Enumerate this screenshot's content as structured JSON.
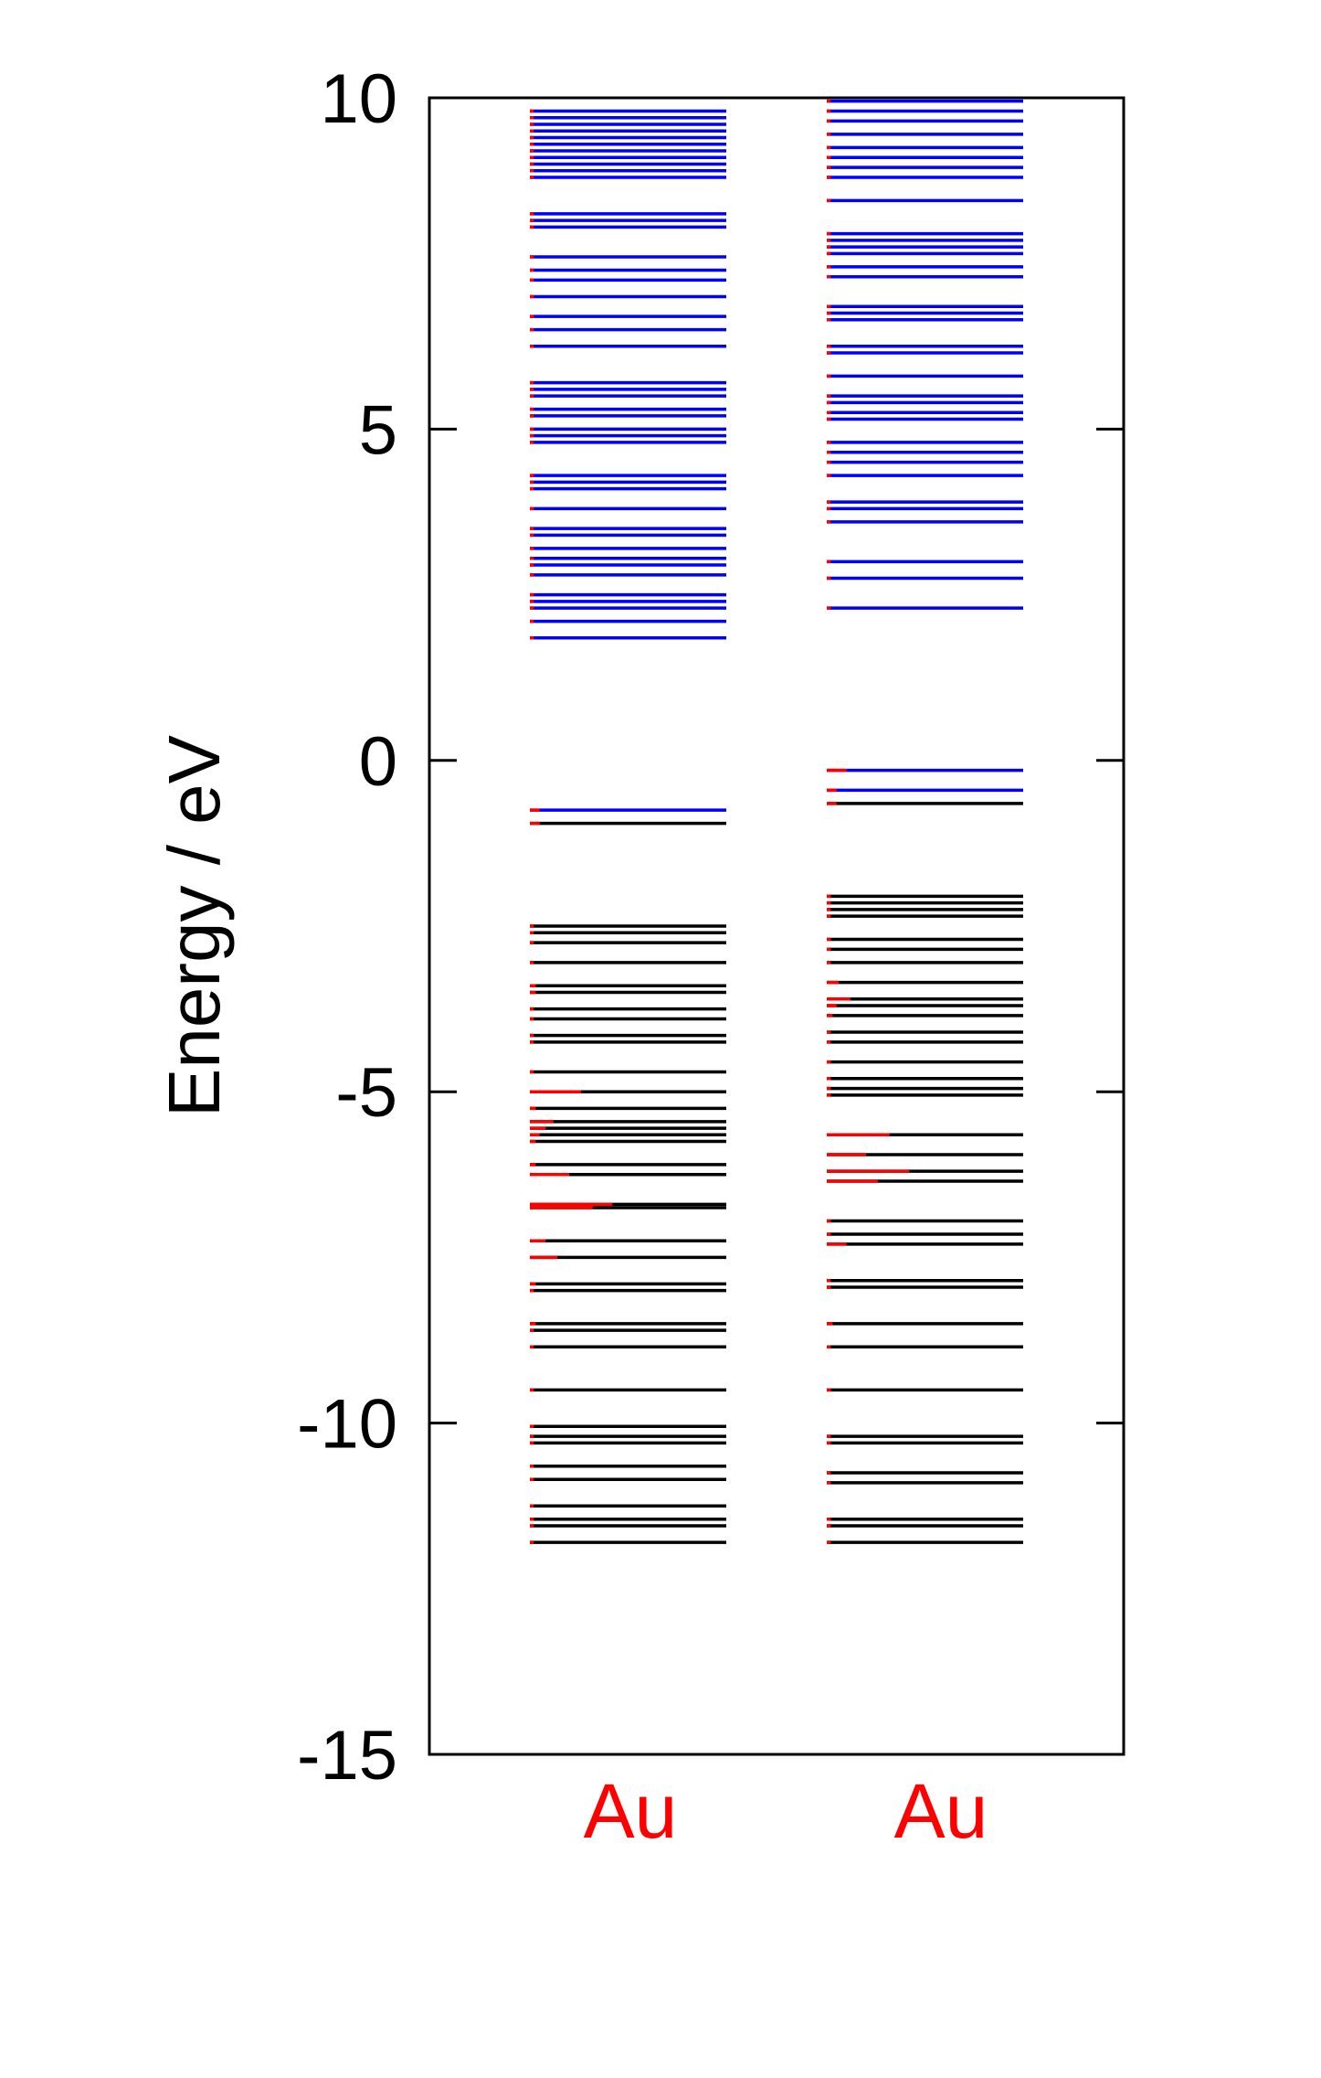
{
  "chart_data": {
    "type": "energy-level diagram",
    "ylabel": "Energy / eV",
    "ylim": [
      -15,
      10
    ],
    "yticks": [
      "10",
      "5",
      "0",
      "-5",
      "-10",
      "-15"
    ],
    "ytick_values": [
      10,
      5,
      0,
      -5,
      -10,
      -15
    ],
    "colors": {
      "unoccupied": "#0000ff",
      "occupied": "#000000",
      "au_fraction": "#ff0000",
      "column_label": "#ff0000",
      "axes": "#000000"
    },
    "columns": [
      {
        "label": "Au",
        "levels": [
          {
            "e": 9.8,
            "occ": false,
            "au": 0.02
          },
          {
            "e": 9.7,
            "occ": false,
            "au": 0.02
          },
          {
            "e": 9.6,
            "occ": false,
            "au": 0.02
          },
          {
            "e": 9.5,
            "occ": false,
            "au": 0.02
          },
          {
            "e": 9.4,
            "occ": false,
            "au": 0.02
          },
          {
            "e": 9.3,
            "occ": false,
            "au": 0.02
          },
          {
            "e": 9.2,
            "occ": false,
            "au": 0.02
          },
          {
            "e": 9.1,
            "occ": false,
            "au": 0.02
          },
          {
            "e": 9.0,
            "occ": false,
            "au": 0.02
          },
          {
            "e": 8.9,
            "occ": false,
            "au": 0.02
          },
          {
            "e": 8.8,
            "occ": false,
            "au": 0.02
          },
          {
            "e": 8.25,
            "occ": false,
            "au": 0.02
          },
          {
            "e": 8.15,
            "occ": false,
            "au": 0.02
          },
          {
            "e": 8.05,
            "occ": false,
            "au": 0.02
          },
          {
            "e": 7.6,
            "occ": false,
            "au": 0.02
          },
          {
            "e": 7.4,
            "occ": false,
            "au": 0.02
          },
          {
            "e": 7.25,
            "occ": false,
            "au": 0.02
          },
          {
            "e": 7.0,
            "occ": false,
            "au": 0.02
          },
          {
            "e": 6.7,
            "occ": false,
            "au": 0.02
          },
          {
            "e": 6.5,
            "occ": false,
            "au": 0.02
          },
          {
            "e": 6.25,
            "occ": false,
            "au": 0.02
          },
          {
            "e": 5.7,
            "occ": false,
            "au": 0.02
          },
          {
            "e": 5.6,
            "occ": false,
            "au": 0.02
          },
          {
            "e": 5.5,
            "occ": false,
            "au": 0.02
          },
          {
            "e": 5.3,
            "occ": false,
            "au": 0.02
          },
          {
            "e": 5.2,
            "occ": false,
            "au": 0.02
          },
          {
            "e": 5.0,
            "occ": false,
            "au": 0.02
          },
          {
            "e": 4.9,
            "occ": false,
            "au": 0.02
          },
          {
            "e": 4.8,
            "occ": false,
            "au": 0.02
          },
          {
            "e": 4.3,
            "occ": false,
            "au": 0.02
          },
          {
            "e": 4.2,
            "occ": false,
            "au": 0.02
          },
          {
            "e": 4.1,
            "occ": false,
            "au": 0.02
          },
          {
            "e": 3.8,
            "occ": false,
            "au": 0.02
          },
          {
            "e": 3.5,
            "occ": false,
            "au": 0.02
          },
          {
            "e": 3.4,
            "occ": false,
            "au": 0.02
          },
          {
            "e": 3.2,
            "occ": false,
            "au": 0.02
          },
          {
            "e": 3.05,
            "occ": false,
            "au": 0.02
          },
          {
            "e": 2.95,
            "occ": false,
            "au": 0.02
          },
          {
            "e": 2.8,
            "occ": false,
            "au": 0.02
          },
          {
            "e": 2.5,
            "occ": false,
            "au": 0.02
          },
          {
            "e": 2.4,
            "occ": false,
            "au": 0.02
          },
          {
            "e": 2.3,
            "occ": false,
            "au": 0.02
          },
          {
            "e": 2.1,
            "occ": false,
            "au": 0.02
          },
          {
            "e": 1.85,
            "occ": false,
            "au": 0.02
          },
          {
            "e": -0.75,
            "occ": false,
            "au": 0.05
          },
          {
            "e": -0.95,
            "occ": true,
            "au": 0.05
          },
          {
            "e": -2.5,
            "occ": true,
            "au": 0.02
          },
          {
            "e": -2.6,
            "occ": true,
            "au": 0.02
          },
          {
            "e": -2.75,
            "occ": true,
            "au": 0.02
          },
          {
            "e": -3.05,
            "occ": true,
            "au": 0.02
          },
          {
            "e": -3.4,
            "occ": true,
            "au": 0.03
          },
          {
            "e": -3.5,
            "occ": true,
            "au": 0.03
          },
          {
            "e": -3.75,
            "occ": true,
            "au": 0.02
          },
          {
            "e": -3.9,
            "occ": true,
            "au": 0.02
          },
          {
            "e": -4.15,
            "occ": true,
            "au": 0.02
          },
          {
            "e": -4.25,
            "occ": true,
            "au": 0.02
          },
          {
            "e": -4.7,
            "occ": true,
            "au": 0.02
          },
          {
            "e": -5.0,
            "occ": true,
            "au": 0.26
          },
          {
            "e": -5.25,
            "occ": true,
            "au": 0.03
          },
          {
            "e": -5.45,
            "occ": true,
            "au": 0.12
          },
          {
            "e": -5.55,
            "occ": true,
            "au": 0.08
          },
          {
            "e": -5.65,
            "occ": true,
            "au": 0.05
          },
          {
            "e": -5.75,
            "occ": true,
            "au": 0.03
          },
          {
            "e": -6.1,
            "occ": true,
            "au": 0.03
          },
          {
            "e": -6.25,
            "occ": true,
            "au": 0.2
          },
          {
            "e": -6.7,
            "occ": true,
            "au": 0.42
          },
          {
            "e": -6.75,
            "occ": true,
            "au": 0.32
          },
          {
            "e": -7.25,
            "occ": true,
            "au": 0.08
          },
          {
            "e": -7.5,
            "occ": true,
            "au": 0.14
          },
          {
            "e": -7.9,
            "occ": true,
            "au": 0.03
          },
          {
            "e": -8.0,
            "occ": true,
            "au": 0.02
          },
          {
            "e": -8.5,
            "occ": true,
            "au": 0.03
          },
          {
            "e": -8.6,
            "occ": true,
            "au": 0.02
          },
          {
            "e": -8.85,
            "occ": true,
            "au": 0.02
          },
          {
            "e": -9.5,
            "occ": true,
            "au": 0.02
          },
          {
            "e": -10.05,
            "occ": true,
            "au": 0.02
          },
          {
            "e": -10.2,
            "occ": true,
            "au": 0.02
          },
          {
            "e": -10.3,
            "occ": true,
            "au": 0.02
          },
          {
            "e": -10.65,
            "occ": true,
            "au": 0.02
          },
          {
            "e": -10.85,
            "occ": true,
            "au": 0.02
          },
          {
            "e": -11.25,
            "occ": true,
            "au": 0.02
          },
          {
            "e": -11.45,
            "occ": true,
            "au": 0.02
          },
          {
            "e": -11.55,
            "occ": true,
            "au": 0.02
          },
          {
            "e": -11.8,
            "occ": true,
            "au": 0.02
          }
        ]
      },
      {
        "label": "Au",
        "levels": [
          {
            "e": 9.95,
            "occ": false,
            "au": 0.02
          },
          {
            "e": 9.8,
            "occ": false,
            "au": 0.02
          },
          {
            "e": 9.65,
            "occ": false,
            "au": 0.02
          },
          {
            "e": 9.45,
            "occ": false,
            "au": 0.02
          },
          {
            "e": 9.25,
            "occ": false,
            "au": 0.02
          },
          {
            "e": 9.1,
            "occ": false,
            "au": 0.02
          },
          {
            "e": 8.95,
            "occ": false,
            "au": 0.02
          },
          {
            "e": 8.8,
            "occ": false,
            "au": 0.02
          },
          {
            "e": 8.45,
            "occ": false,
            "au": 0.02
          },
          {
            "e": 7.95,
            "occ": false,
            "au": 0.02
          },
          {
            "e": 7.85,
            "occ": false,
            "au": 0.02
          },
          {
            "e": 7.75,
            "occ": false,
            "au": 0.02
          },
          {
            "e": 7.65,
            "occ": false,
            "au": 0.02
          },
          {
            "e": 7.45,
            "occ": false,
            "au": 0.02
          },
          {
            "e": 7.3,
            "occ": false,
            "au": 0.02
          },
          {
            "e": 6.85,
            "occ": false,
            "au": 0.02
          },
          {
            "e": 6.75,
            "occ": false,
            "au": 0.02
          },
          {
            "e": 6.65,
            "occ": false,
            "au": 0.02
          },
          {
            "e": 6.25,
            "occ": false,
            "au": 0.02
          },
          {
            "e": 6.15,
            "occ": false,
            "au": 0.02
          },
          {
            "e": 5.8,
            "occ": false,
            "au": 0.02
          },
          {
            "e": 5.5,
            "occ": false,
            "au": 0.02
          },
          {
            "e": 5.4,
            "occ": false,
            "au": 0.02
          },
          {
            "e": 5.25,
            "occ": false,
            "au": 0.02
          },
          {
            "e": 5.15,
            "occ": false,
            "au": 0.02
          },
          {
            "e": 4.8,
            "occ": false,
            "au": 0.02
          },
          {
            "e": 4.65,
            "occ": false,
            "au": 0.02
          },
          {
            "e": 4.5,
            "occ": false,
            "au": 0.02
          },
          {
            "e": 4.3,
            "occ": false,
            "au": 0.02
          },
          {
            "e": 3.9,
            "occ": false,
            "au": 0.02
          },
          {
            "e": 3.8,
            "occ": false,
            "au": 0.02
          },
          {
            "e": 3.6,
            "occ": false,
            "au": 0.02
          },
          {
            "e": 3.0,
            "occ": false,
            "au": 0.02
          },
          {
            "e": 2.75,
            "occ": false,
            "au": 0.02
          },
          {
            "e": 2.3,
            "occ": false,
            "au": 0.02
          },
          {
            "e": -0.15,
            "occ": false,
            "au": 0.1
          },
          {
            "e": -0.45,
            "occ": false,
            "au": 0.05
          },
          {
            "e": -0.65,
            "occ": true,
            "au": 0.05
          },
          {
            "e": -2.05,
            "occ": true,
            "au": 0.02
          },
          {
            "e": -2.15,
            "occ": true,
            "au": 0.02
          },
          {
            "e": -2.25,
            "occ": true,
            "au": 0.02
          },
          {
            "e": -2.35,
            "occ": true,
            "au": 0.02
          },
          {
            "e": -2.7,
            "occ": true,
            "au": 0.02
          },
          {
            "e": -2.85,
            "occ": true,
            "au": 0.02
          },
          {
            "e": -3.05,
            "occ": true,
            "au": 0.02
          },
          {
            "e": -3.35,
            "occ": true,
            "au": 0.06
          },
          {
            "e": -3.6,
            "occ": true,
            "au": 0.12
          },
          {
            "e": -3.7,
            "occ": true,
            "au": 0.05
          },
          {
            "e": -3.85,
            "occ": true,
            "au": 0.03
          },
          {
            "e": -4.1,
            "occ": true,
            "au": 0.02
          },
          {
            "e": -4.25,
            "occ": true,
            "au": 0.02
          },
          {
            "e": -4.55,
            "occ": true,
            "au": 0.02
          },
          {
            "e": -4.8,
            "occ": true,
            "au": 0.02
          },
          {
            "e": -4.95,
            "occ": true,
            "au": 0.02
          },
          {
            "e": -5.05,
            "occ": true,
            "au": 0.02
          },
          {
            "e": -5.65,
            "occ": true,
            "au": 0.32
          },
          {
            "e": -5.95,
            "occ": true,
            "au": 0.2
          },
          {
            "e": -6.2,
            "occ": true,
            "au": 0.42
          },
          {
            "e": -6.35,
            "occ": true,
            "au": 0.26
          },
          {
            "e": -6.95,
            "occ": true,
            "au": 0.02
          },
          {
            "e": -7.15,
            "occ": true,
            "au": 0.02
          },
          {
            "e": -7.3,
            "occ": true,
            "au": 0.1
          },
          {
            "e": -7.85,
            "occ": true,
            "au": 0.02
          },
          {
            "e": -7.95,
            "occ": true,
            "au": 0.02
          },
          {
            "e": -8.5,
            "occ": true,
            "au": 0.03
          },
          {
            "e": -8.85,
            "occ": true,
            "au": 0.02
          },
          {
            "e": -9.5,
            "occ": true,
            "au": 0.02
          },
          {
            "e": -10.2,
            "occ": true,
            "au": 0.02
          },
          {
            "e": -10.3,
            "occ": true,
            "au": 0.02
          },
          {
            "e": -10.75,
            "occ": true,
            "au": 0.02
          },
          {
            "e": -10.9,
            "occ": true,
            "au": 0.02
          },
          {
            "e": -11.45,
            "occ": true,
            "au": 0.02
          },
          {
            "e": -11.55,
            "occ": true,
            "au": 0.02
          },
          {
            "e": -11.8,
            "occ": true,
            "au": 0.02
          }
        ]
      }
    ]
  }
}
